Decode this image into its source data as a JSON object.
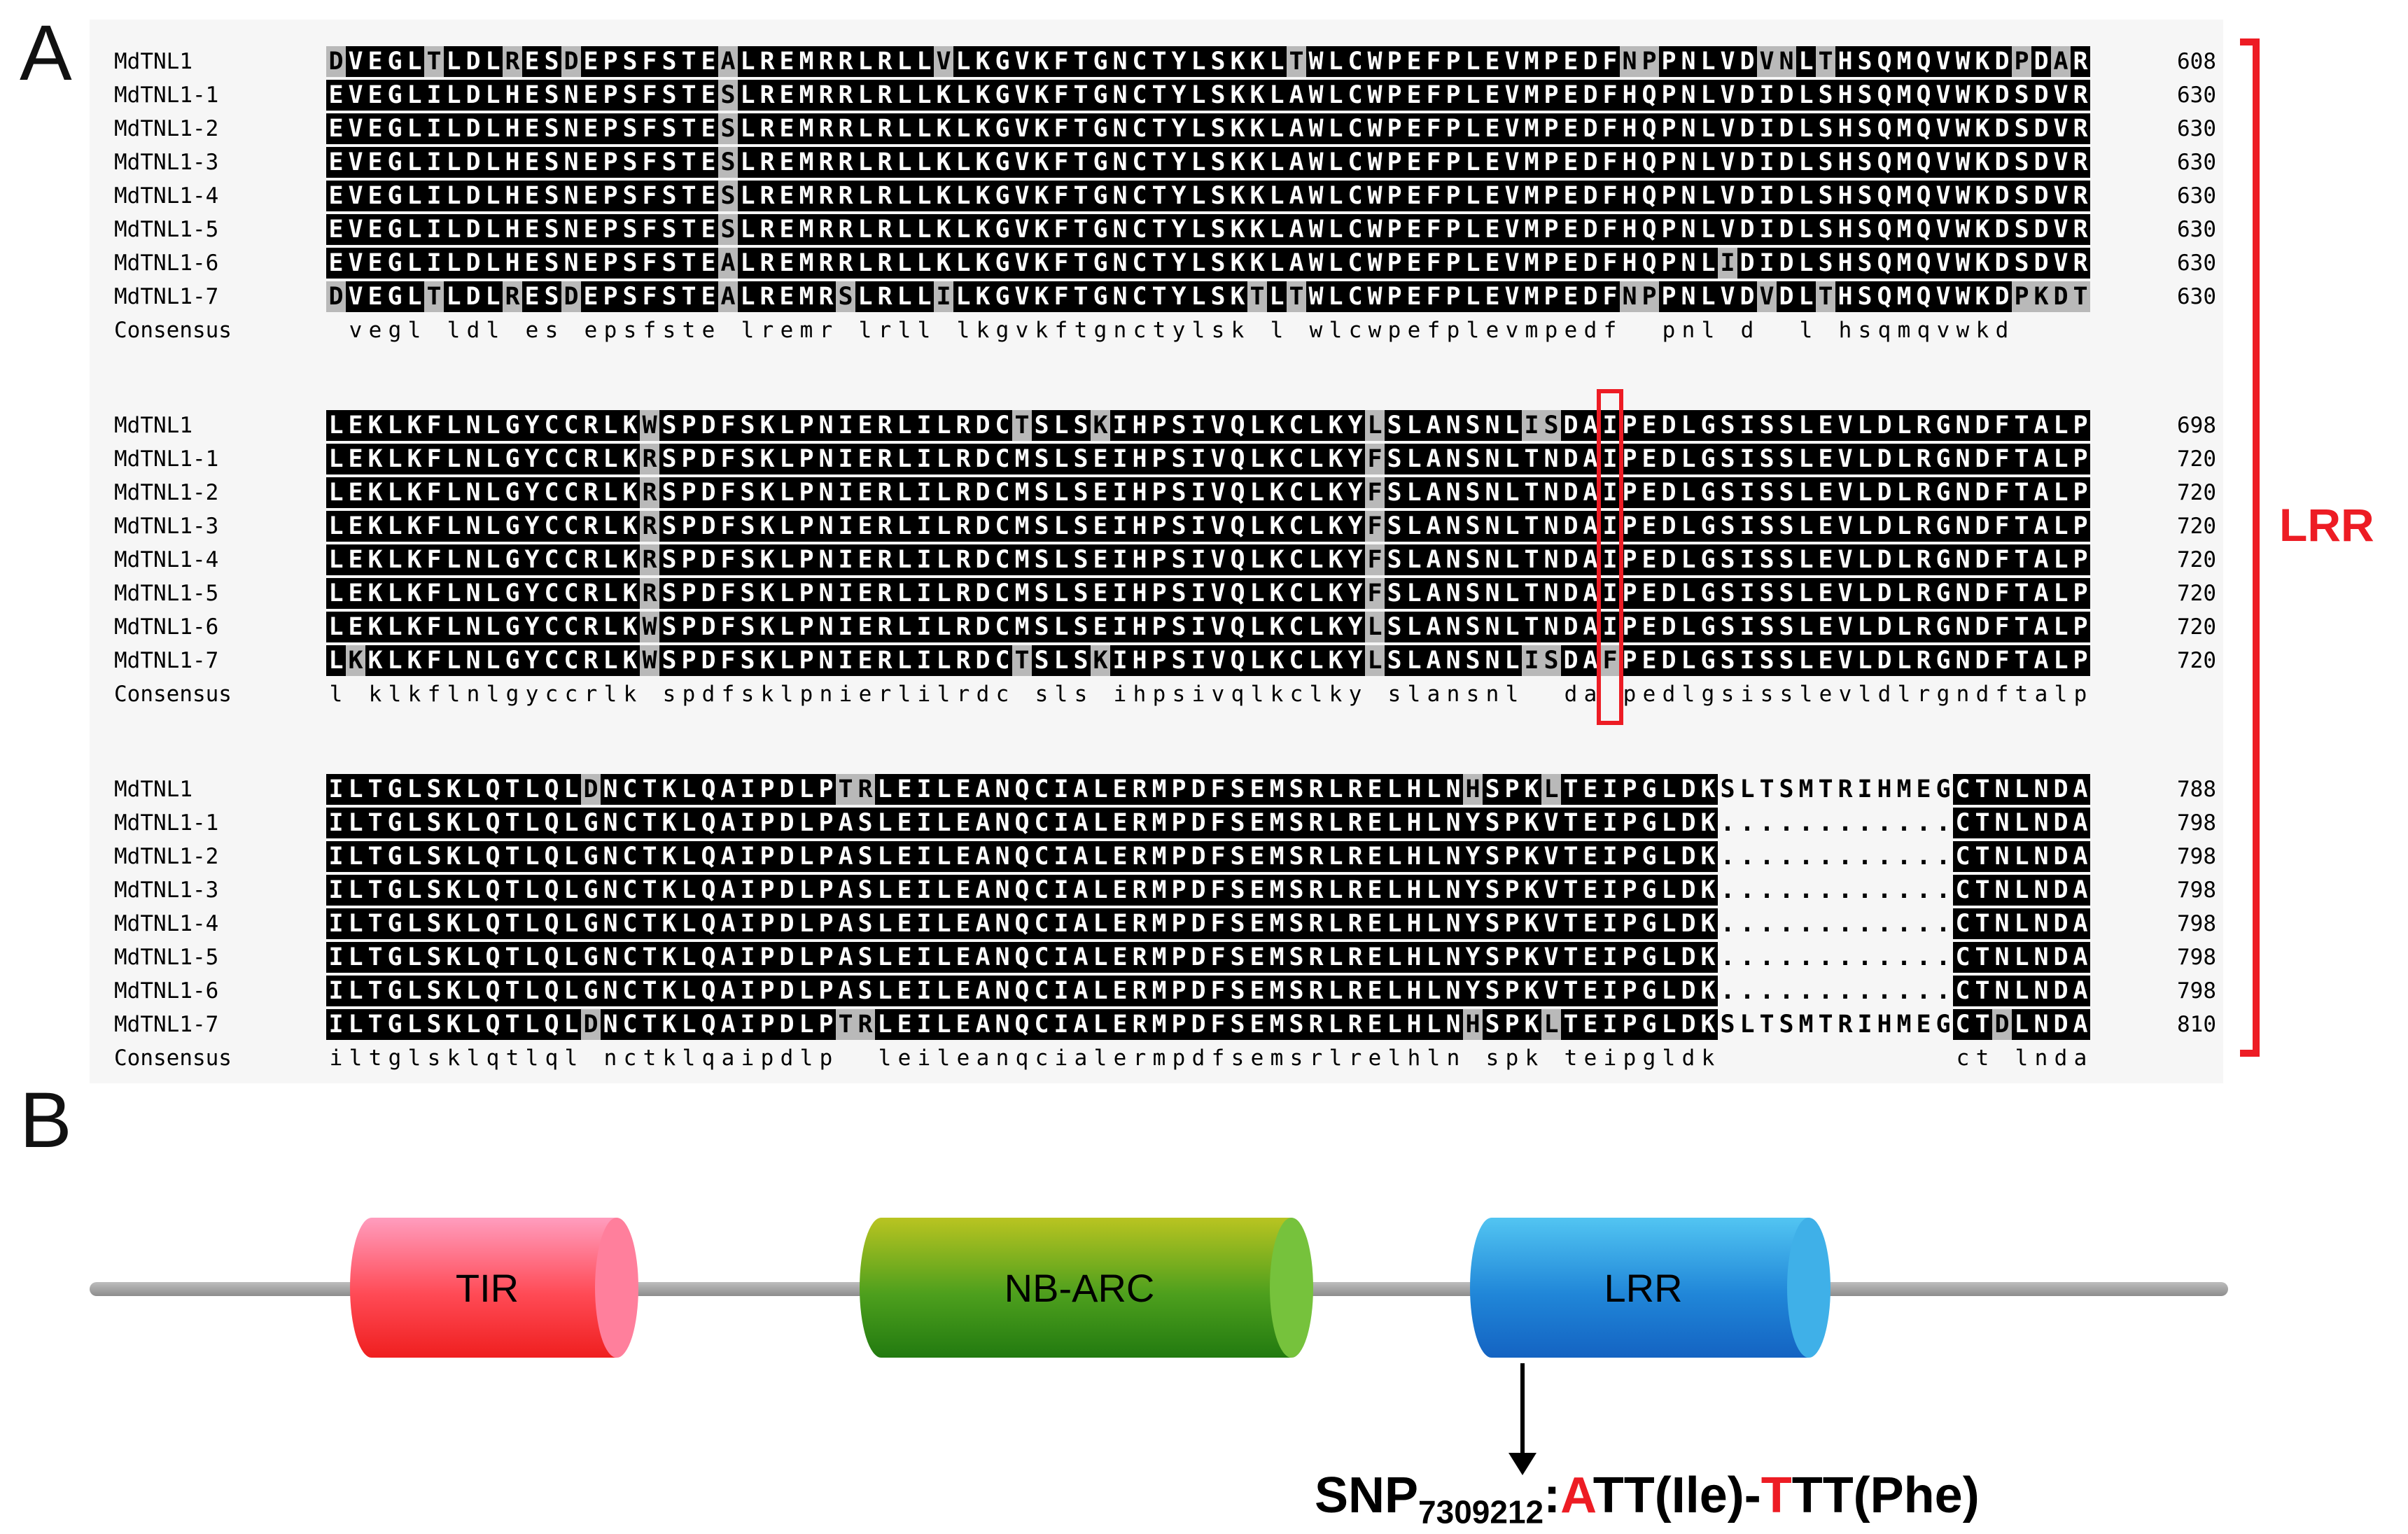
{
  "panel_a": {
    "label": "A",
    "bracket_label": "LRR",
    "highlight": {
      "block_index": 1,
      "column": 66,
      "color": "#ed1c24"
    },
    "consensus_name": "Consensus",
    "blocks": [
      {
        "rows": [
          {
            "name": "MdTNL1",
            "seq": "DVEGLTLDLRESDEPSFSTEALREMRRLRLLVLKGVKFTGNCTYLSKKLTWLCWPEFPLEVMPEDFNPPNLVDVNLTHSQMQVWKDPDAR",
            "end": "608"
          },
          {
            "name": "MdTNL1-1",
            "seq": "EVEGLILDLHESNEPSFSTESLREMRRLRLLKLKGVKFTGNCTYLSKKLAWLCWPEFPLEVMPEDFHQPNLVDIDLSHSQMQVWKDSDVR",
            "end": "630"
          },
          {
            "name": "MdTNL1-2",
            "seq": "EVEGLILDLHESNEPSFSTESLREMRRLRLLKLKGVKFTGNCTYLSKKLAWLCWPEFPLEVMPEDFHQPNLVDIDLSHSQMQVWKDSDVR",
            "end": "630"
          },
          {
            "name": "MdTNL1-3",
            "seq": "EVEGLILDLHESNEPSFSTESLREMRRLRLLKLKGVKFTGNCTYLSKKLAWLCWPEFPLEVMPEDFHQPNLVDIDLSHSQMQVWKDSDVR",
            "end": "630"
          },
          {
            "name": "MdTNL1-4",
            "seq": "EVEGLILDLHESNEPSFSTESLREMRRLRLLKLKGVKFTGNCTYLSKKLAWLCWPEFPLEVMPEDFHQPNLVDIDLSHSQMQVWKDSDVR",
            "end": "630"
          },
          {
            "name": "MdTNL1-5",
            "seq": "EVEGLILDLHESNEPSFSTESLREMRRLRLLKLKGVKFTGNCTYLSKKLAWLCWPEFPLEVMPEDFHQPNLVDIDLSHSQMQVWKDSDVR",
            "end": "630"
          },
          {
            "name": "MdTNL1-6",
            "seq": "EVEGLILDLHESNEPSFSTEALREMRRLRLLKLKGVKFTGNCTYLSKKLAWLCWPEFPLEVMPEDFHQPNLIDIDLSHSQMQVWKDSDVR",
            "end": "630"
          },
          {
            "name": "MdTNL1-7",
            "seq": "DVEGLTLDLRESDEPSFSTEALREMRSLRLLILKGVKFTGNCTYLSKTLTWLCWPEFPLEVMPEDFNPPNLVDVDLTHSQMQVWKDPKDT",
            "end": "630"
          }
        ],
        "consensus": " vegl ldl es epsfste lremr lrll lkgvkftgnctylsk l wlcwpefplevmpedf  pnl d  l hsqmqvwkd    "
      },
      {
        "rows": [
          {
            "name": "MdTNL1",
            "seq": "LEKLKFLNLGYCCRLKWSPDFSKLPNIERLILRDCTSLSKIHPSIVQLKCLKYLSLANSNLISDAIPEDLGSISSLEVLDLRGNDFTALP",
            "end": "698"
          },
          {
            "name": "MdTNL1-1",
            "seq": "LEKLKFLNLGYCCRLKRSPDFSKLPNIERLILRDCMSLSEIHPSIVQLKCLKYFSLANSNLTNDAIPEDLGSISSLEVLDLRGNDFTALP",
            "end": "720"
          },
          {
            "name": "MdTNL1-2",
            "seq": "LEKLKFLNLGYCCRLKRSPDFSKLPNIERLILRDCMSLSEIHPSIVQLKCLKYFSLANSNLTNDAIPEDLGSISSLEVLDLRGNDFTALP",
            "end": "720"
          },
          {
            "name": "MdTNL1-3",
            "seq": "LEKLKFLNLGYCCRLKRSPDFSKLPNIERLILRDCMSLSEIHPSIVQLKCLKYFSLANSNLTNDAIPEDLGSISSLEVLDLRGNDFTALP",
            "end": "720"
          },
          {
            "name": "MdTNL1-4",
            "seq": "LEKLKFLNLGYCCRLKRSPDFSKLPNIERLILRDCMSLSEIHPSIVQLKCLKYFSLANSNLTNDAIPEDLGSISSLEVLDLRGNDFTALP",
            "end": "720"
          },
          {
            "name": "MdTNL1-5",
            "seq": "LEKLKFLNLGYCCRLKRSPDFSKLPNIERLILRDCMSLSEIHPSIVQLKCLKYFSLANSNLTNDAIPEDLGSISSLEVLDLRGNDFTALP",
            "end": "720"
          },
          {
            "name": "MdTNL1-6",
            "seq": "LEKLKFLNLGYCCRLKWSPDFSKLPNIERLILRDCMSLSEIHPSIVQLKCLKYLSLANSNLTNDAIPEDLGSISSLEVLDLRGNDFTALP",
            "end": "720"
          },
          {
            "name": "MdTNL1-7",
            "seq": "LKKLKFLNLGYCCRLKWSPDFSKLPNIERLILRDCTSLSKIHPSIVQLKCLKYLSLANSNLISDAFPEDLGSISSLEVLDLRGNDFTALP",
            "end": "720"
          }
        ],
        "consensus": "l klkflnlgyccrlk spdfsklpnierlilrdc sls ihpsivqlkclky slansnl  da pedlgsisslevldlrgndftalp"
      },
      {
        "rows": [
          {
            "name": "MdTNL1",
            "seq": "ILTGLSKLQTLQLDNCTKLQAIPDLPTRLEILEANQCIALERMPDFSEMSRLRELHLNHSPKLTEIPGLDKSLTSMTRIHMEGCTNLNDA",
            "end": "788"
          },
          {
            "name": "MdTNL1-1",
            "seq": "ILTGLSKLQTLQLGNCTKLQAIPDLPASLEILEANQCIALERMPDFSEMSRLRELHLNYSPKVTEIPGLDK............CTNLNDA",
            "end": "798"
          },
          {
            "name": "MdTNL1-2",
            "seq": "ILTGLSKLQTLQLGNCTKLQAIPDLPASLEILEANQCIALERMPDFSEMSRLRELHLNYSPKVTEIPGLDK............CTNLNDA",
            "end": "798"
          },
          {
            "name": "MdTNL1-3",
            "seq": "ILTGLSKLQTLQLGNCTKLQAIPDLPASLEILEANQCIALERMPDFSEMSRLRELHLNYSPKVTEIPGLDK............CTNLNDA",
            "end": "798"
          },
          {
            "name": "MdTNL1-4",
            "seq": "ILTGLSKLQTLQLGNCTKLQAIPDLPASLEILEANQCIALERMPDFSEMSRLRELHLNYSPKVTEIPGLDK............CTNLNDA",
            "end": "798"
          },
          {
            "name": "MdTNL1-5",
            "seq": "ILTGLSKLQTLQLGNCTKLQAIPDLPASLEILEANQCIALERMPDFSEMSRLRELHLNYSPKVTEIPGLDK............CTNLNDA",
            "end": "798"
          },
          {
            "name": "MdTNL1-6",
            "seq": "ILTGLSKLQTLQLGNCTKLQAIPDLPASLEILEANQCIALERMPDFSEMSRLRELHLNYSPKVTEIPGLDK............CTNLNDA",
            "end": "798"
          },
          {
            "name": "MdTNL1-7",
            "seq": "ILTGLSKLQTLQLDNCTKLQAIPDLPTRLEILEANQCIALERMPDFSEMSRLRELHLNHSPKLTEIPGLDKSLTSMTRIHMEGCTDLNDA",
            "end": "810"
          }
        ],
        "consensus": "iltglsklqtlql nctklqaipdlp  leileanqcialermpdfsemsrlrelhln spk teipgldk            ct lnda"
      }
    ]
  },
  "panel_b": {
    "label": "B",
    "domains": [
      {
        "label": "TIR",
        "color_top": "#ff9dbe",
        "color_mid": "#ff4a55",
        "color_bottom": "#ef1f1f",
        "color_cap": "#ff7f9c"
      },
      {
        "label": "NB-ARC",
        "color_top": "#b9c421",
        "color_mid": "#4d9f1d",
        "color_bottom": "#227a10",
        "color_cap": "#76c23c"
      },
      {
        "label": "LRR",
        "color_top": "#52c5f2",
        "color_mid": "#2086d8",
        "color_bottom": "#1463c2",
        "color_cap": "#3fb0e8"
      }
    ],
    "annotation": {
      "prefix": "SNP",
      "subscript": "7309212",
      "colon": ":",
      "allele1_first": "A",
      "allele1_rest": "TT(Ile)-",
      "allele2_first": "T",
      "allele2_rest": "TT(Phe)",
      "red_color": "#ed1c24"
    }
  }
}
